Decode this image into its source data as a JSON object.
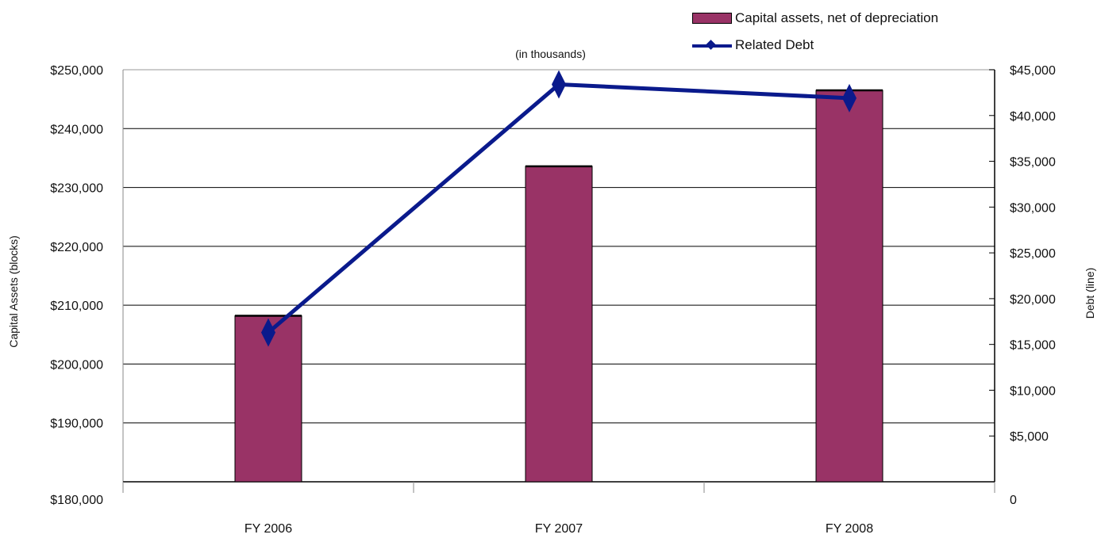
{
  "chart_data": {
    "type": "bar",
    "subtitle": "(in thousands)",
    "categories": [
      "FY 2006",
      "FY 2007",
      "FY 2008"
    ],
    "series": [
      {
        "name": "Capital assets, net of depreciation",
        "type": "bar",
        "axis": "left",
        "values": [
          208200,
          233600,
          246500
        ],
        "color": "#993366"
      },
      {
        "name": "Related Debt",
        "type": "line",
        "axis": "right",
        "values": [
          16300,
          43400,
          41900
        ],
        "color": "#0a1a8c"
      }
    ],
    "ylabel": "Capital Assets (blocks)",
    "y2label": "Debt (line)",
    "ylim": [
      180000,
      250000
    ],
    "y2lim": [
      0,
      45000
    ],
    "yticks": [
      "$180,000",
      "$190,000",
      "$200,000",
      "$210,000",
      "$220,000",
      "$230,000",
      "$240,000",
      "$250,000"
    ],
    "y2ticks": [
      "0",
      "$5,000",
      "$10,000",
      "$15,000",
      "$20,000",
      "$25,000",
      "$30,000",
      "$35,000",
      "$40,000",
      "$45,000"
    ],
    "grid": true,
    "legend_position": "top-right"
  }
}
